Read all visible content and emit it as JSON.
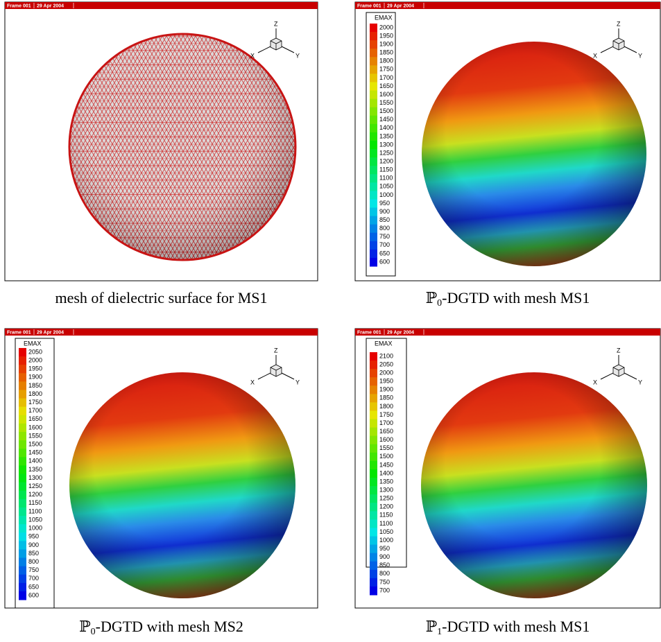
{
  "panels": [
    {
      "header": {
        "frame": "Frame 001",
        "date": "29 Apr 2004"
      },
      "axes": {
        "x": "X",
        "y": "Y",
        "z": "Z"
      },
      "caption": {
        "text": "mesh of dielectric surface for MS1"
      }
    },
    {
      "header": {
        "frame": "Frame 001",
        "date": "29 Apr 2004"
      },
      "axes": {
        "x": "X",
        "y": "Y",
        "z": "Z"
      },
      "legend": {
        "title": "EMAX",
        "levels": [
          2000,
          1950,
          1900,
          1850,
          1800,
          1750,
          1700,
          1650,
          1600,
          1550,
          1500,
          1450,
          1400,
          1350,
          1300,
          1250,
          1200,
          1150,
          1100,
          1050,
          1000,
          950,
          900,
          850,
          800,
          750,
          700,
          650,
          600
        ]
      },
      "caption": {
        "symbol": "ℙ",
        "sub": "0",
        "text": "-DGTD with mesh MS1"
      }
    },
    {
      "header": {
        "frame": "Frame 001",
        "date": "29 Apr 2004"
      },
      "axes": {
        "x": "X",
        "y": "Y",
        "z": "Z"
      },
      "legend": {
        "title": "EMAX",
        "levels": [
          2050,
          2000,
          1950,
          1900,
          1850,
          1800,
          1750,
          1700,
          1650,
          1600,
          1550,
          1500,
          1450,
          1400,
          1350,
          1300,
          1250,
          1200,
          1150,
          1100,
          1050,
          1000,
          950,
          900,
          850,
          800,
          750,
          700,
          650,
          600
        ]
      },
      "caption": {
        "symbol": "ℙ",
        "sub": "0",
        "text": "-DGTD with mesh MS2"
      }
    },
    {
      "header": {
        "frame": "Frame 001",
        "date": "29 Apr 2004"
      },
      "axes": {
        "x": "X",
        "y": "Y",
        "z": "Z"
      },
      "legend": {
        "title": "EMAX",
        "levels": [
          2100,
          2050,
          2000,
          1950,
          1900,
          1850,
          1800,
          1750,
          1700,
          1650,
          1600,
          1550,
          1500,
          1450,
          1400,
          1350,
          1300,
          1250,
          1200,
          1150,
          1100,
          1050,
          1000,
          950,
          900,
          850,
          800,
          750,
          700
        ]
      },
      "caption": {
        "symbol": "ℙ",
        "sub": "1",
        "text": "-DGTD with mesh MS1"
      }
    }
  ]
}
